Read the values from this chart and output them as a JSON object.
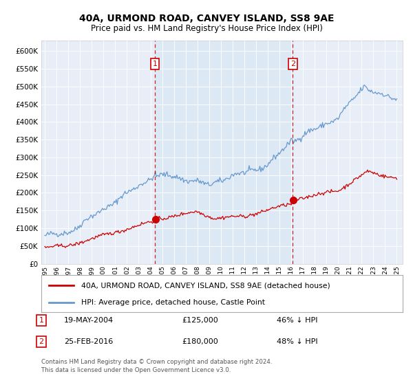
{
  "title": "40A, URMOND ROAD, CANVEY ISLAND, SS8 9AE",
  "subtitle": "Price paid vs. HM Land Registry's House Price Index (HPI)",
  "legend_line1": "40A, URMOND ROAD, CANVEY ISLAND, SS8 9AE (detached house)",
  "legend_line2": "HPI: Average price, detached house, Castle Point",
  "transaction1_date": "19-MAY-2004",
  "transaction1_price": "£125,000",
  "transaction1_hpi": "46% ↓ HPI",
  "transaction1_year": 2004.38,
  "transaction1_value": 125000,
  "transaction2_date": "25-FEB-2016",
  "transaction2_price": "£180,000",
  "transaction2_hpi": "48% ↓ HPI",
  "transaction2_year": 2016.14,
  "transaction2_value": 180000,
  "footnote": "Contains HM Land Registry data © Crown copyright and database right 2024.\nThis data is licensed under the Open Government Licence v3.0.",
  "red_color": "#cc0000",
  "blue_color": "#6699cc",
  "shade_color": "#dde8f5",
  "vline_color": "#cc0000",
  "ylim": [
    0,
    630000
  ],
  "yticks": [
    0,
    50000,
    100000,
    150000,
    200000,
    250000,
    300000,
    350000,
    400000,
    450000,
    500000,
    550000,
    600000
  ],
  "background_color": "#ffffff",
  "plot_bg_color": "#e8eef8"
}
